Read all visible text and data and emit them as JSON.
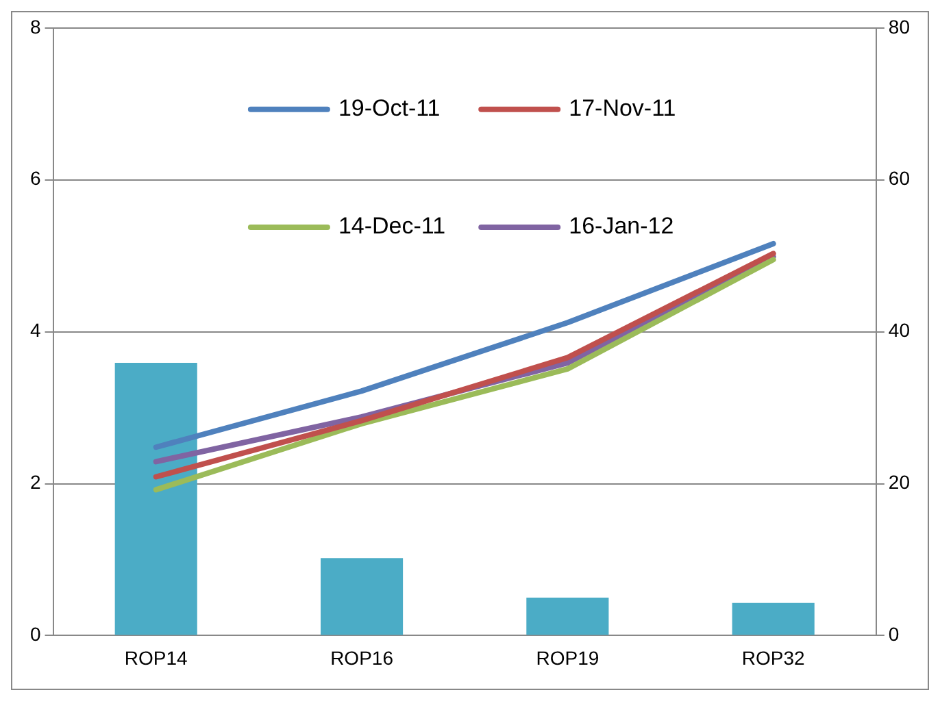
{
  "chart_data": {
    "type": "bar",
    "categories": [
      "ROP14",
      "ROP16",
      "ROP19",
      "ROP32"
    ],
    "series": [
      {
        "color": "#4bacc6",
        "values": [
          3.59,
          1.02,
          0.5,
          0.43
        ]
      },
      {
        "type": "line",
        "name": "19-Oct-11",
        "color": "#4f81bd",
        "axis": "y2",
        "values": [
          24.8,
          32.2,
          41.2,
          51.6
        ]
      },
      {
        "type": "line",
        "name": "17-Nov-11",
        "color": "#c0504d",
        "axis": "y2",
        "values": [
          20.9,
          28.3,
          36.6,
          50.3
        ]
      },
      {
        "type": "line",
        "name": "14-Dec-11",
        "color": "#9bbb59",
        "axis": "y2",
        "values": [
          19.2,
          27.9,
          35.1,
          49.5
        ]
      },
      {
        "type": "line",
        "name": "16-Jan-12",
        "color": "#8064a2",
        "axis": "y2",
        "values": [
          22.9,
          28.8,
          35.9,
          49.9
        ]
      }
    ],
    "ylim": [
      0,
      8
    ],
    "yticks": [
      0,
      2,
      4,
      6,
      8
    ],
    "y2lim": [
      0,
      80
    ],
    "y2ticks": [
      0,
      20,
      40,
      60,
      80
    ],
    "grid": "y",
    "legend": "top",
    "marker": "none",
    "line_style": "solid"
  }
}
